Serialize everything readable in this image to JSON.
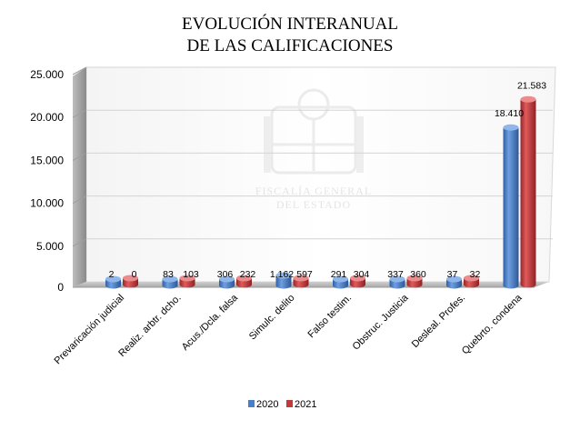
{
  "chart_data": {
    "type": "bar",
    "title_lines": [
      "EVOLUCIÓN INTERANUAL",
      "DE LAS CALIFICACIONES"
    ],
    "categories": [
      "Prevaricación judicial",
      "Realiz. arbtr. dcho.",
      "Acus./Dcla. falsa",
      "Simulc. delito",
      "Falso testim.",
      "Obstruc. Justicia",
      "Desleal. Profes.",
      "Quebrto. condena"
    ],
    "series": [
      {
        "name": "2020",
        "color": "#4a7fc7",
        "values": [
          2,
          83,
          306,
          1162,
          291,
          337,
          37,
          18410
        ],
        "labels": [
          "2",
          "83",
          "306",
          "1.162",
          "291",
          "337",
          "37",
          "18.410"
        ]
      },
      {
        "name": "2021",
        "color": "#c0393b",
        "values": [
          0,
          103,
          232,
          597,
          304,
          360,
          32,
          21583
        ],
        "labels": [
          "0",
          "103",
          "232",
          "597",
          "304",
          "360",
          "32",
          "21.583"
        ]
      }
    ],
    "ylim": [
      0,
      25000
    ],
    "yticks": [
      0,
      5000,
      10000,
      15000,
      20000,
      25000
    ],
    "ytick_labels": [
      "0",
      "5.000",
      "10.000",
      "15.000",
      "20.000",
      "25.000"
    ],
    "grid": true,
    "legend_position": "bottom-center",
    "watermark": [
      "FISCALÍA GENERAL",
      "DEL ESTADO"
    ]
  }
}
